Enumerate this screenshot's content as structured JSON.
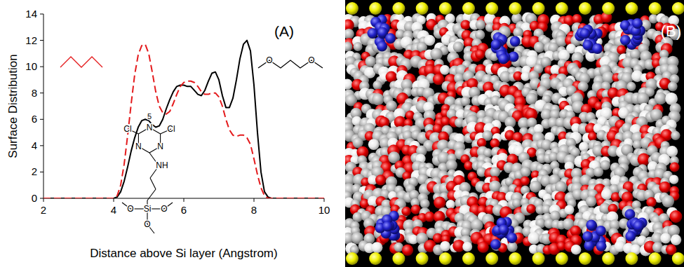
{
  "chart_data": {
    "type": "line",
    "panel_label": "(A)",
    "x_label": "Distance above Si layer (Angstrom)",
    "y_label": "Surface Distribution",
    "x": [
      2,
      4.0,
      4.1,
      4.2,
      4.3,
      4.4,
      4.5,
      4.6,
      4.7,
      4.8,
      4.9,
      5.0,
      5.1,
      5.2,
      5.3,
      5.4,
      5.5,
      5.6,
      5.7,
      5.8,
      5.9,
      6.0,
      6.1,
      6.2,
      6.3,
      6.4,
      6.5,
      6.6,
      6.7,
      6.8,
      6.9,
      7.0,
      7.1,
      7.2,
      7.3,
      7.4,
      7.5,
      7.6,
      7.7,
      7.8,
      7.9,
      8.0,
      8.1,
      8.2,
      8.3,
      8.4,
      8.5,
      10
    ],
    "series": [
      {
        "color": "#000000",
        "line_style": "solid",
        "values": [
          0,
          0,
          0.1,
          0.5,
          1.3,
          2.4,
          3.6,
          4.6,
          5.4,
          5.9,
          6.0,
          5.9,
          5.6,
          5.4,
          5.5,
          6.0,
          6.8,
          7.5,
          8.1,
          8.5,
          8.6,
          8.6,
          8.5,
          8.5,
          8.2,
          7.9,
          7.8,
          8.2,
          8.9,
          9.5,
          9.6,
          9.0,
          7.8,
          6.9,
          6.9,
          7.6,
          9.0,
          10.6,
          11.7,
          12.0,
          11.2,
          8.6,
          5.0,
          2.0,
          0.5,
          0.1,
          0,
          0
        ]
      },
      {
        "color": "#e41a1c",
        "line_style": "dashed",
        "values": [
          0,
          0,
          0.2,
          1.0,
          2.6,
          4.8,
          7.2,
          9.4,
          10.9,
          11.6,
          11.7,
          11.0,
          9.6,
          8.1,
          7.0,
          6.5,
          6.4,
          6.6,
          7.2,
          7.9,
          8.5,
          8.8,
          8.9,
          8.9,
          8.8,
          8.5,
          8.1,
          7.9,
          7.9,
          8.0,
          8.0,
          7.7,
          7.0,
          6.0,
          5.2,
          4.8,
          4.7,
          4.8,
          4.8,
          4.6,
          4.1,
          3.0,
          1.8,
          0.8,
          0.2,
          0,
          0,
          0
        ]
      }
    ],
    "xlim": [
      2,
      10
    ],
    "ylim": [
      0,
      14
    ],
    "xticks": [
      2,
      4,
      6,
      8,
      10
    ],
    "yticks": [
      0,
      2,
      4,
      6,
      8,
      10,
      12,
      14
    ],
    "annotations": [
      "5",
      "Cl",
      "Cl",
      "N",
      "N",
      "N",
      "NH",
      "Si",
      "O",
      "O",
      "O",
      "O",
      "O"
    ]
  },
  "image": {
    "label": "(B)"
  }
}
